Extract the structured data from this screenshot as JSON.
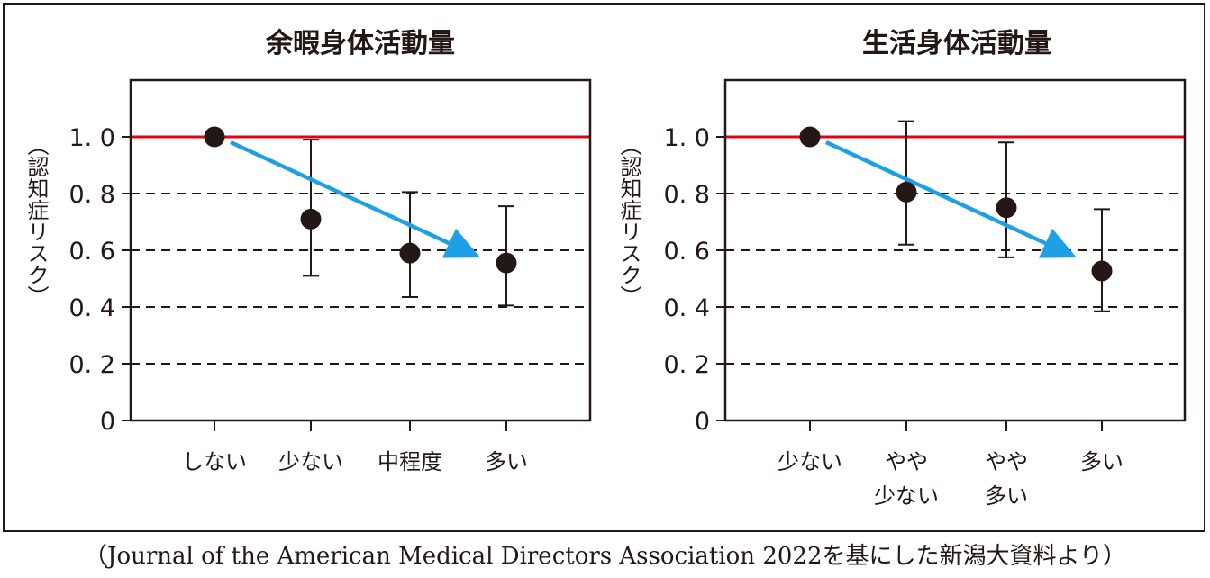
{
  "source_note": "（Journal of the American Medical Directors Association 2022を基にした新潟大資料より）",
  "chart_data": [
    {
      "type": "scatter",
      "title": "余暇身体活動量",
      "ylabel": "（認知症リスク）",
      "ylim": [
        0,
        1.2
      ],
      "yticks": [
        "0",
        "0. 2",
        "0. 4",
        "0. 6",
        "0. 8",
        "1. 0"
      ],
      "ytick_values": [
        0,
        0.2,
        0.4,
        0.6,
        0.8,
        1.0
      ],
      "reference_line": 1.0,
      "reference_color": "#e60012",
      "point_color": "#231815",
      "arrow_color": "#1ea0e6",
      "categories": [
        [
          "しない"
        ],
        [
          "少ない"
        ],
        [
          "中程度"
        ],
        [
          "多い"
        ]
      ],
      "values": [
        1.0,
        0.71,
        0.59,
        0.555
      ],
      "ci_low": [
        null,
        0.51,
        0.435,
        0.405
      ],
      "ci_high": [
        null,
        0.99,
        0.805,
        0.755
      ],
      "trend_arrow": {
        "from": 1.0,
        "to": 0.59
      }
    },
    {
      "type": "scatter",
      "title": "生活身体活動量",
      "ylabel": "（認知症リスク）",
      "ylim": [
        0,
        1.2
      ],
      "yticks": [
        "0",
        "0. 2",
        "0. 4",
        "0. 6",
        "0. 8",
        "1. 0"
      ],
      "ytick_values": [
        0,
        0.2,
        0.4,
        0.6,
        0.8,
        1.0
      ],
      "reference_line": 1.0,
      "reference_color": "#e60012",
      "point_color": "#231815",
      "arrow_color": "#1ea0e6",
      "categories": [
        [
          "少ない"
        ],
        [
          "やや",
          "少ない"
        ],
        [
          "やや",
          "多い"
        ],
        [
          "多い"
        ]
      ],
      "values": [
        1.0,
        0.805,
        0.75,
        0.527
      ],
      "ci_low": [
        null,
        0.62,
        0.575,
        0.385
      ],
      "ci_high": [
        null,
        1.055,
        0.98,
        0.745
      ],
      "trend_arrow": {
        "from": 1.0,
        "to": 0.59
      }
    }
  ]
}
